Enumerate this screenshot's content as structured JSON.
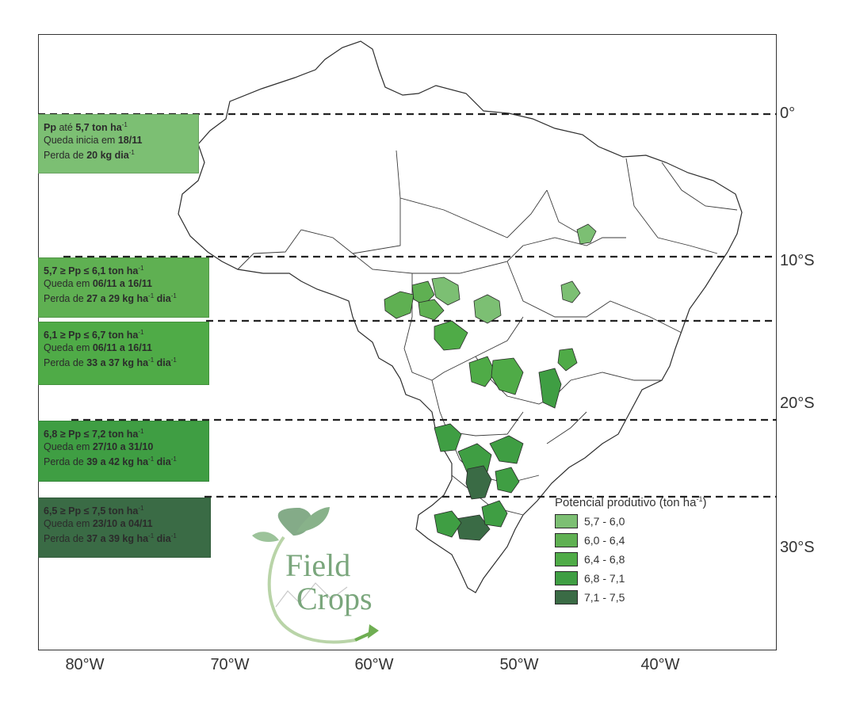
{
  "map": {
    "latitude_labels": [
      "0°",
      "10°S",
      "20°S",
      "30°S"
    ],
    "longitude_labels": [
      "80°W",
      "70°W",
      "60°W",
      "50°W",
      "40°W"
    ]
  },
  "notes": [
    {
      "color": "#7cbf73",
      "l1": {
        "a": "Pp",
        "b": " até ",
        "c": "5,7 ton ha",
        "sup": "-1",
        "d": ""
      },
      "l2": {
        "a": "Queda inicia em ",
        "b": "18/11",
        "sup": "",
        "c": ""
      },
      "l3": {
        "a": "Perda de ",
        "b": "20 kg dia",
        "sup": "-1",
        "c": ""
      }
    },
    {
      "color": "#5fb052",
      "l1": {
        "a": "5,7  ≥ Pp ≤ 6,1 ton ha",
        "b": "",
        "c": "",
        "sup": "-1",
        "d": ""
      },
      "l2": {
        "a": "Queda em ",
        "b": "06/11 a 16/11",
        "sup": "",
        "c": ""
      },
      "l3": {
        "a": "Perda de ",
        "b": "27 a 29 kg ha",
        "sup": "-1",
        "c": " dia"
      },
      "l3sup2": "-1"
    },
    {
      "color": "#4fab47",
      "l1": {
        "a": "6,1  ≥ Pp ≤ 6,7 ton ha",
        "b": "",
        "c": "",
        "sup": "-1",
        "d": ""
      },
      "l2": {
        "a": "Queda em ",
        "b": "06/11 a 16/11",
        "sup": "",
        "c": ""
      },
      "l3": {
        "a": "Perda de ",
        "b": "33 a 37 kg ha",
        "sup": "-1",
        "c": " dia"
      },
      "l3sup2": "-1"
    },
    {
      "color": "#3f9e43",
      "l1": {
        "a": "6,8  ≥ Pp ≤ 7,2 ton ha",
        "b": "",
        "c": "",
        "sup": "-1",
        "d": ""
      },
      "l2": {
        "a": "Queda em ",
        "b": "27/10 a 31/10",
        "sup": "",
        "c": ""
      },
      "l3": {
        "a": "Perda de ",
        "b": "39 a 42 kg ha",
        "sup": "-1",
        "c": " dia"
      },
      "l3sup2": "-1"
    },
    {
      "color": "#3a6b45",
      "l1": {
        "a": "6,5  ≥ Pp ≤ 7,5 ton ha",
        "b": "",
        "c": "",
        "sup": "-1",
        "d": ""
      },
      "l2": {
        "a": "Queda em ",
        "b": "23/10 a 04/11",
        "sup": "",
        "c": ""
      },
      "l3": {
        "a": "Perda de ",
        "b": "37 a 39 kg ha",
        "sup": "-1",
        "c": " dia"
      },
      "l3sup2": "-1"
    }
  ],
  "legend": {
    "title": "Potencial produtivo (ton ha",
    "title_sup": "-1",
    "title_end": ")",
    "items": [
      {
        "label": "5,7 - 6,0",
        "color": "#7cbf73"
      },
      {
        "label": "6,0 - 6,4",
        "color": "#5fb052"
      },
      {
        "label": "6,4 - 6,8",
        "color": "#4fab47"
      },
      {
        "label": "6,8 - 7,1",
        "color": "#3f9e43"
      },
      {
        "label": "7,1 - 7,5",
        "color": "#3a6b45"
      }
    ]
  },
  "logo": {
    "word1": "Field",
    "word2": "Crops",
    "color": "#7aa67c"
  }
}
